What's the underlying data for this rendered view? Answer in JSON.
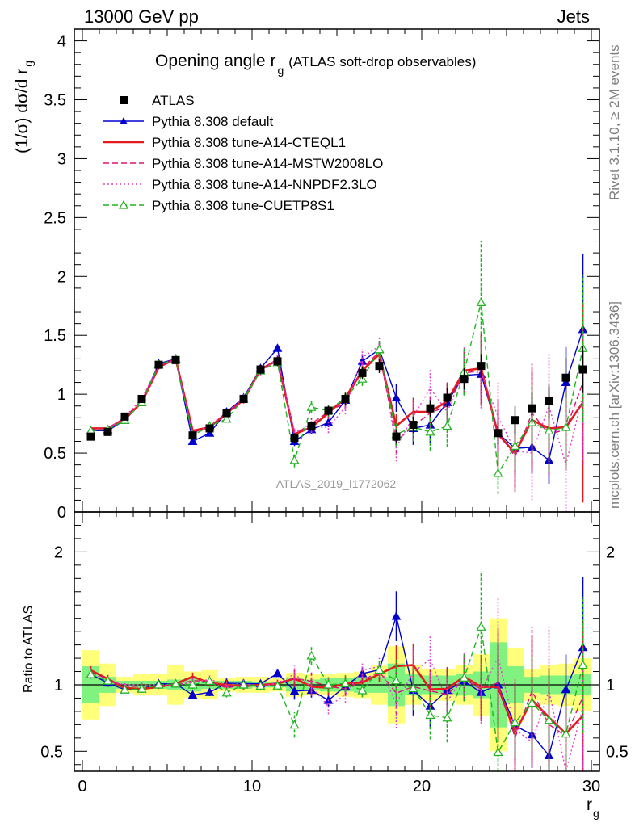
{
  "header": {
    "left": "13000 GeV pp",
    "right": "Jets",
    "side_top": "Rivet 3.1.10, ≥ 2M events",
    "side_bottom": "mcplots.cern.ch [arXiv:1306.3436]"
  },
  "chart_data": {
    "type": "line",
    "title": "Opening angle r",
    "title_sub": "g",
    "title_suffix": "(ATLAS soft-drop observables)",
    "watermark": "ATLAS_2019_I1772062",
    "ylabel": "(1/σ) dσ/d r",
    "ylabel_sub": "g",
    "ratio_ylabel": "Ratio to ATLAS",
    "xlabel": "r",
    "xlabel_sub": "g",
    "xlim": [
      0,
      30
    ],
    "ylim": [
      0,
      4.1
    ],
    "ratio_ylim": [
      0.35,
      2.3
    ],
    "x_ticks": [
      0,
      10,
      20,
      30
    ],
    "y_ticks": [
      0,
      0.5,
      1,
      1.5,
      2,
      2.5,
      3,
      3.5,
      4
    ],
    "y_tick_labels": [
      "0",
      "0.5",
      "1",
      "1.5",
      "2",
      "2.5",
      "3",
      "3.5",
      "4"
    ],
    "ratio_ticks": [
      0.5,
      1,
      2
    ],
    "ratio_tick_labels": [
      "0.5",
      "1",
      "2"
    ],
    "x": [
      0.5,
      1.5,
      2.5,
      3.5,
      4.5,
      5.5,
      6.5,
      7.5,
      8.5,
      9.5,
      10.5,
      11.5,
      12.5,
      13.5,
      14.5,
      15.5,
      16.5,
      17.5,
      18.5,
      19.5,
      20.5,
      21.5,
      22.5,
      23.5,
      24.5,
      25.5,
      26.5,
      27.5,
      28.5,
      29.5
    ],
    "data": {
      "name": "ATLAS",
      "values": [
        0.64,
        0.68,
        0.81,
        0.96,
        1.25,
        1.29,
        0.65,
        0.71,
        0.84,
        0.96,
        1.21,
        1.28,
        0.63,
        0.73,
        0.86,
        0.96,
        1.18,
        1.24,
        0.64,
        0.74,
        0.88,
        0.97,
        1.13,
        1.24,
        0.67,
        0.78,
        0.88,
        0.94,
        1.14,
        1.21
      ],
      "err": [
        0.02,
        0.02,
        0.02,
        0.03,
        0.03,
        0.03,
        0.03,
        0.03,
        0.03,
        0.03,
        0.04,
        0.04,
        0.04,
        0.04,
        0.04,
        0.05,
        0.05,
        0.06,
        0.06,
        0.07,
        0.07,
        0.08,
        0.09,
        0.1,
        0.1,
        0.12,
        0.13,
        0.15,
        0.17,
        0.2
      ]
    },
    "band_inner": [
      0.14,
      0.06,
      0.03,
      0.03,
      0.03,
      0.04,
      0.05,
      0.03,
      0.03,
      0.03,
      0.02,
      0.02,
      0.05,
      0.04,
      0.05,
      0.05,
      0.06,
      0.06,
      0.16,
      0.08,
      0.07,
      0.07,
      0.08,
      0.1,
      0.32,
      0.14,
      0.06,
      0.07,
      0.07,
      0.08
    ],
    "band_outer": [
      0.26,
      0.16,
      0.06,
      0.08,
      0.08,
      0.15,
      0.1,
      0.11,
      0.05,
      0.06,
      0.06,
      0.05,
      0.09,
      0.08,
      0.08,
      0.09,
      0.1,
      0.15,
      0.29,
      0.15,
      0.12,
      0.12,
      0.15,
      0.23,
      0.5,
      0.28,
      0.12,
      0.15,
      0.16,
      0.2
    ],
    "series": [
      {
        "name": "Pythia 8.308 default",
        "color": "#0000d0",
        "style": "solid",
        "marker": "triangle-filled",
        "values": [
          0.69,
          0.69,
          0.78,
          0.93,
          1.26,
          1.3,
          0.6,
          0.67,
          0.85,
          0.97,
          1.22,
          1.39,
          0.6,
          0.7,
          0.76,
          0.95,
          1.28,
          1.38,
          0.97,
          0.71,
          0.74,
          0.93,
          1.16,
          1.17,
          0.67,
          0.54,
          0.55,
          0.44,
          1.1,
          1.55
        ],
        "err": [
          0.02,
          0.02,
          0.02,
          0.02,
          0.02,
          0.02,
          0.02,
          0.02,
          0.03,
          0.03,
          0.03,
          0.03,
          0.04,
          0.04,
          0.04,
          0.05,
          0.06,
          0.06,
          0.12,
          0.14,
          0.15,
          0.16,
          0.17,
          0.18,
          0.2,
          0.22,
          0.22,
          0.2,
          0.3,
          0.64
        ]
      },
      {
        "name": "Pythia 8.308 tune-A14-CTEQL1",
        "color": "#e41a1c",
        "style": "solid",
        "marker": "none",
        "values": [
          0.71,
          0.71,
          0.79,
          0.93,
          1.23,
          1.3,
          0.69,
          0.72,
          0.84,
          0.95,
          1.21,
          1.29,
          0.66,
          0.72,
          0.84,
          0.97,
          1.2,
          1.34,
          0.73,
          0.85,
          0.85,
          0.94,
          1.2,
          1.22,
          0.66,
          0.5,
          0.78,
          0.71,
          0.72,
          0.93
        ],
        "err": [
          0.02,
          0.02,
          0.02,
          0.02,
          0.02,
          0.02,
          0.02,
          0.02,
          0.03,
          0.03,
          0.03,
          0.03,
          0.04,
          0.05,
          0.05,
          0.05,
          0.06,
          0.07,
          0.1,
          0.12,
          0.13,
          0.16,
          0.18,
          0.3,
          0.28,
          0.3,
          0.42,
          0.35,
          0.35,
          0.85
        ]
      },
      {
        "name": "Pythia 8.308 tune-A14-MSTW2008LO",
        "color": "#e0106e",
        "style": "dashed",
        "marker": "none",
        "values": [
          0.7,
          0.71,
          0.8,
          0.95,
          1.24,
          1.29,
          0.67,
          0.73,
          0.82,
          0.96,
          1.2,
          1.3,
          0.66,
          0.75,
          0.85,
          0.93,
          1.22,
          1.36,
          0.6,
          0.73,
          0.84,
          0.9,
          1.18,
          1.2,
          0.68,
          0.47,
          0.84,
          0.66,
          0.7,
          1.1
        ],
        "err": [
          0.02,
          0.02,
          0.02,
          0.02,
          0.02,
          0.02,
          0.02,
          0.02,
          0.03,
          0.03,
          0.03,
          0.03,
          0.04,
          0.05,
          0.05,
          0.05,
          0.06,
          0.07,
          0.1,
          0.12,
          0.13,
          0.16,
          0.18,
          0.3,
          0.28,
          0.3,
          0.42,
          0.35,
          0.35,
          0.7
        ]
      },
      {
        "name": "Pythia 8.308 tune-A14-NNPDF2.3LO",
        "color": "#e040d0",
        "style": "dotted",
        "marker": "none",
        "values": [
          0.7,
          0.7,
          0.81,
          0.96,
          1.25,
          1.29,
          0.66,
          0.74,
          0.84,
          0.97,
          1.19,
          1.3,
          0.68,
          0.72,
          0.72,
          0.89,
          1.31,
          1.41,
          0.55,
          0.81,
          1.05,
          0.85,
          1.2,
          1.18,
          0.81,
          0.52,
          0.5,
          0.9,
          0.4,
          1.0
        ],
        "err": [
          0.02,
          0.02,
          0.02,
          0.02,
          0.02,
          0.02,
          0.02,
          0.02,
          0.03,
          0.03,
          0.03,
          0.03,
          0.04,
          0.05,
          0.05,
          0.06,
          0.07,
          0.08,
          0.12,
          0.14,
          0.16,
          0.18,
          0.2,
          0.3,
          0.3,
          0.3,
          0.4,
          0.45,
          0.45,
          0.55
        ]
      },
      {
        "name": "Pythia 8.308 tune-CUETP8S1",
        "color": "#1db41d",
        "style": "dashed",
        "marker": "triangle-open",
        "values": [
          0.69,
          0.7,
          0.78,
          0.93,
          1.25,
          1.3,
          0.65,
          0.73,
          0.79,
          0.96,
          1.2,
          1.27,
          0.44,
          0.89,
          0.86,
          0.97,
          1.13,
          1.38,
          0.66,
          0.72,
          0.68,
          0.73,
          1.19,
          1.78,
          0.33,
          0.56,
          0.76,
          0.69,
          0.72,
          1.39
        ],
        "err": [
          0.02,
          0.02,
          0.02,
          0.02,
          0.02,
          0.02,
          0.02,
          0.02,
          0.03,
          0.03,
          0.03,
          0.03,
          0.06,
          0.05,
          0.05,
          0.06,
          0.06,
          0.08,
          0.1,
          0.12,
          0.16,
          0.18,
          0.2,
          0.52,
          0.18,
          0.2,
          0.3,
          0.35,
          0.35,
          0.62
        ]
      }
    ],
    "legend_position": "top-left"
  }
}
